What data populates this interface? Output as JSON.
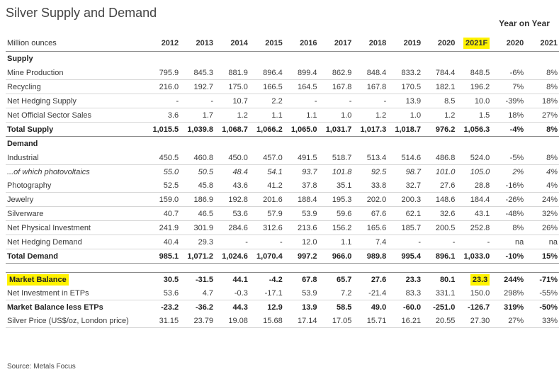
{
  "title": "Silver Supply and Demand",
  "yoy_label": "Year on Year",
  "source": "Source: Metals Focus",
  "chart_data": {
    "type": "table",
    "columns": [
      "Million ounces",
      "2012",
      "2013",
      "2014",
      "2015",
      "2016",
      "2017",
      "2018",
      "2019",
      "2020",
      "2021F",
      "2020",
      "2021"
    ],
    "rows": [
      {
        "kind": "section",
        "label": "Supply",
        "values": []
      },
      {
        "kind": "data",
        "label": "Mine Production",
        "values": [
          "795.9",
          "845.3",
          "881.9",
          "896.4",
          "899.4",
          "862.9",
          "848.4",
          "833.2",
          "784.4",
          "848.5",
          "-6%",
          "8%"
        ]
      },
      {
        "kind": "data",
        "label": "Recycling",
        "values": [
          "216.0",
          "192.7",
          "175.0",
          "166.5",
          "164.5",
          "167.8",
          "167.8",
          "170.5",
          "182.1",
          "196.2",
          "7%",
          "8%"
        ]
      },
      {
        "kind": "data",
        "label": "Net Hedging Supply",
        "values": [
          "-",
          "-",
          "10.7",
          "2.2",
          "-",
          "-",
          "-",
          "13.9",
          "8.5",
          "10.0",
          "-39%",
          "18%"
        ]
      },
      {
        "kind": "data",
        "label": "Net Official Sector Sales",
        "values": [
          "3.6",
          "1.7",
          "1.2",
          "1.1",
          "1.1",
          "1.0",
          "1.2",
          "1.0",
          "1.2",
          "1.5",
          "18%",
          "27%"
        ]
      },
      {
        "kind": "total",
        "label": "Total Supply",
        "values": [
          "1,015.5",
          "1,039.8",
          "1,068.7",
          "1,066.2",
          "1,065.0",
          "1,031.7",
          "1,017.3",
          "1,018.7",
          "976.2",
          "1,056.3",
          "-4%",
          "8%"
        ]
      },
      {
        "kind": "section",
        "label": "Demand",
        "values": []
      },
      {
        "kind": "data",
        "label": "Industrial",
        "values": [
          "450.5",
          "460.8",
          "450.0",
          "457.0",
          "491.5",
          "518.7",
          "513.4",
          "514.6",
          "486.8",
          "524.0",
          "-5%",
          "8%"
        ]
      },
      {
        "kind": "italic",
        "label": "...of which photovoltaics",
        "values": [
          "55.0",
          "50.5",
          "48.4",
          "54.1",
          "93.7",
          "101.8",
          "92.5",
          "98.7",
          "101.0",
          "105.0",
          "2%",
          "4%"
        ]
      },
      {
        "kind": "data",
        "label": "Photography",
        "values": [
          "52.5",
          "45.8",
          "43.6",
          "41.2",
          "37.8",
          "35.1",
          "33.8",
          "32.7",
          "27.6",
          "28.8",
          "-16%",
          "4%"
        ]
      },
      {
        "kind": "data",
        "label": "Jewelry",
        "values": [
          "159.0",
          "186.9",
          "192.8",
          "201.6",
          "188.4",
          "195.3",
          "202.0",
          "200.3",
          "148.6",
          "184.4",
          "-26%",
          "24%"
        ]
      },
      {
        "kind": "data",
        "label": "Silverware",
        "values": [
          "40.7",
          "46.5",
          "53.6",
          "57.9",
          "53.9",
          "59.6",
          "67.6",
          "62.1",
          "32.6",
          "43.1",
          "-48%",
          "32%"
        ]
      },
      {
        "kind": "data",
        "label": "Net Physical Investment",
        "values": [
          "241.9",
          "301.9",
          "284.6",
          "312.6",
          "213.6",
          "156.2",
          "165.6",
          "185.7",
          "200.5",
          "252.8",
          "8%",
          "26%"
        ]
      },
      {
        "kind": "data",
        "label": "Net Hedging Demand",
        "values": [
          "40.4",
          "29.3",
          "-",
          "-",
          "12.0",
          "1.1",
          "7.4",
          "-",
          "-",
          "-",
          "na",
          "na"
        ]
      },
      {
        "kind": "total",
        "label": "Total Demand",
        "values": [
          "985.1",
          "1,071.2",
          "1,024.6",
          "1,070.4",
          "997.2",
          "966.0",
          "989.8",
          "995.4",
          "896.1",
          "1,033.0",
          "-10%",
          "15%"
        ]
      },
      {
        "kind": "spacer",
        "label": "",
        "values": []
      },
      {
        "kind": "bold",
        "label": "Market Balance",
        "values": [
          "30.5",
          "-31.5",
          "44.1",
          "-4.2",
          "67.8",
          "65.7",
          "27.6",
          "23.3",
          "80.1",
          "23.3",
          "244%",
          "-71%"
        ]
      },
      {
        "kind": "data",
        "label": "Net Investment in ETPs",
        "values": [
          "53.6",
          "4.7",
          "-0.3",
          "-17.1",
          "53.9",
          "7.2",
          "-21.4",
          "83.3",
          "331.1",
          "150.0",
          "298%",
          "-55%"
        ]
      },
      {
        "kind": "bold",
        "label": "Market Balance less ETPs",
        "values": [
          "-23.2",
          "-36.2",
          "44.3",
          "12.9",
          "13.9",
          "58.5",
          "49.0",
          "-60.0",
          "-251.0",
          "-126.7",
          "319%",
          "-50%"
        ]
      },
      {
        "kind": "data",
        "label": "Silver Price (US$/oz, London price)",
        "values": [
          "31.15",
          "23.79",
          "19.08",
          "15.68",
          "17.14",
          "17.05",
          "15.71",
          "16.21",
          "20.55",
          "27.30",
          "27%",
          "33%"
        ]
      }
    ],
    "highlight_color": "#fff200",
    "highlighted_cells": [
      "header 2021F",
      "Market Balance label",
      "Market Balance 2021F"
    ]
  }
}
